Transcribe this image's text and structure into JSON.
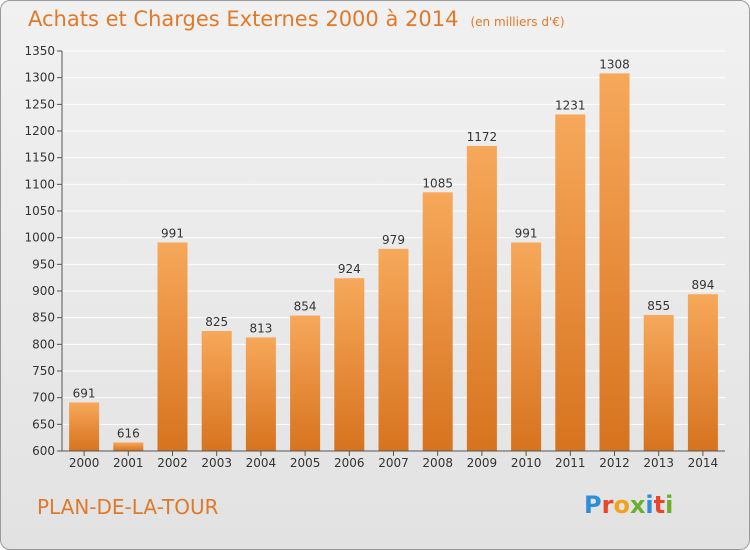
{
  "header": {
    "title": "Achats et Charges Externes 2000 à 2014",
    "subtitle": "(en milliers d'€)"
  },
  "footer": {
    "commune": "PLAN-DE-LA-TOUR",
    "brand": "Proxiti",
    "brand_colors": [
      "#2f8fd6",
      "#e8452c",
      "#f2a21b",
      "#6ab02e",
      "#2f8fd6",
      "#e8452c",
      "#6ab02e"
    ]
  },
  "colors": {
    "accent": "#e0792a",
    "bar_top": "#f7a85a",
    "bar_bottom": "#d7731f",
    "grid": "#ffffff",
    "tick_text": "#333333"
  },
  "chart_data": {
    "type": "bar",
    "categories": [
      "2000",
      "2001",
      "2002",
      "2003",
      "2004",
      "2005",
      "2006",
      "2007",
      "2008",
      "2009",
      "2010",
      "2011",
      "2012",
      "2013",
      "2014"
    ],
    "values": [
      691,
      616,
      991,
      825,
      813,
      854,
      924,
      979,
      1085,
      1172,
      991,
      1231,
      1308,
      855,
      894
    ],
    "ylim": [
      600,
      1350
    ],
    "yticks": [
      600,
      650,
      700,
      750,
      800,
      850,
      900,
      950,
      1000,
      1050,
      1100,
      1150,
      1200,
      1250,
      1300,
      1350
    ],
    "grid": true,
    "legend": "none"
  }
}
